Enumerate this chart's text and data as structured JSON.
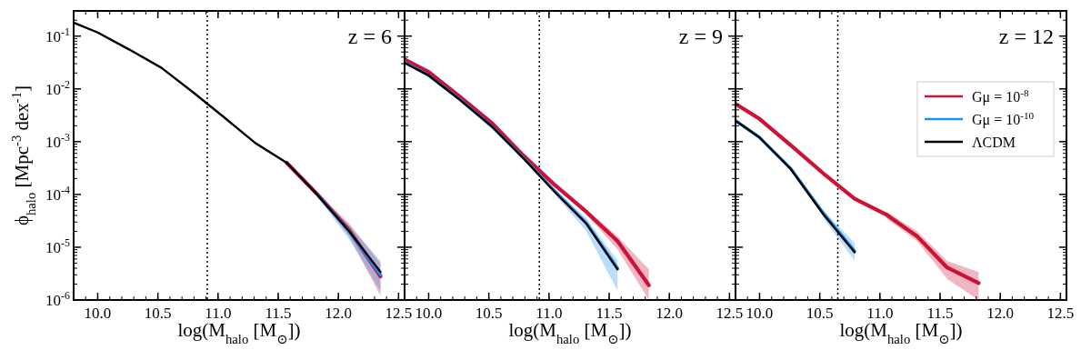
{
  "chart_data": [
    {
      "type": "line",
      "title": "z = 6",
      "xlabel": "log(M$_{halo}$ [M$_{⊙}$])",
      "ylabel": "ϕ$_{halo}$ [Mpc$^{-3}$ dex$^{-1}$]",
      "log": "y",
      "xlim": [
        9.8,
        12.55
      ],
      "xticks": [
        {
          "value": 10,
          "label": "10.0"
        },
        10.5,
        {
          "value": 11,
          "label": "11.0"
        },
        11.5,
        {
          "value": 12,
          "label": "12.0"
        },
        12.5
      ],
      "ylim": [
        1e-06,
        0.3
      ],
      "yticks": [
        {
          "value": 1e-06,
          "label": "10$^{-6}$"
        },
        {
          "value": 1e-05,
          "label": "10$^{-5}$"
        },
        {
          "value": 0.0001,
          "label": "10$^{-4}$"
        },
        {
          "value": 0.001,
          "label": "10$^{-3}$"
        },
        {
          "value": 0.01,
          "label": "10$^{-2}$"
        },
        {
          "value": 0.1,
          "label": "10$^{-1}$"
        }
      ],
      "legend": false,
      "grid": false,
      "ref_lines": [
        {
          "axis": "x",
          "value": 10.91,
          "color": "#000000",
          "line_style": "dotted"
        }
      ],
      "series": [
        {
          "color": "#cc1236",
          "x": [
            11.57,
            11.83,
            12.09,
            12.35
          ],
          "values": [
            0.0004,
            9.8e-05,
            2.1e-05,
            2.8e-06
          ],
          "lower": [
            null,
            9e-05,
            1.6e-05,
            1.2e-06
          ],
          "upper": [
            null,
            0.000105,
            2.8e-05,
            5e-06
          ]
        },
        {
          "color": "#1e8ef0",
          "x": [
            11.83,
            12.09,
            12.35
          ],
          "values": [
            9.6e-05,
            2e-05,
            3e-06
          ],
          "lower": [
            8.8e-05,
            1.4e-05,
            1.5e-06
          ],
          "upper": [
            0.000102,
            2.6e-05,
            5.5e-06
          ]
        },
        {
          "color": "#000000",
          "x": [
            9.8,
            10.0,
            10.26,
            10.53,
            10.79,
            11.05,
            11.31,
            11.57,
            11.83,
            12.09,
            12.35
          ],
          "values": [
            0.18,
            0.117,
            0.056,
            0.025,
            0.0087,
            0.0029,
            0.00094,
            0.0004,
            9.6e-05,
            2e-05,
            3.4e-06
          ]
        }
      ]
    },
    {
      "type": "line",
      "title": "z = 9",
      "xlabel": "log(M$_{halo}$ [M$_{⊙}$])",
      "log": "y",
      "tick_labels": "x",
      "xlim": [
        9.8,
        12.55
      ],
      "xticks": [
        {
          "value": 10,
          "label": "10.0"
        },
        10.5,
        {
          "value": 11,
          "label": "11.0"
        },
        11.5,
        {
          "value": 12,
          "label": "12.0"
        },
        12.5
      ],
      "ylim": [
        1e-06,
        0.3
      ],
      "yticks": [
        {
          "value": 1e-06,
          "label": null
        },
        {
          "value": 1e-05,
          "label": null
        },
        {
          "value": 0.0001,
          "label": null
        },
        {
          "value": 0.001,
          "label": null
        },
        {
          "value": 0.01,
          "label": null
        },
        {
          "value": 0.1,
          "label": null
        }
      ],
      "legend": false,
      "grid": false,
      "ref_lines": [
        {
          "axis": "x",
          "value": 10.92,
          "color": "#000000",
          "line_style": "dotted"
        }
      ],
      "series": [
        {
          "color": "#cc1236",
          "x": [
            9.8,
            10.0,
            10.26,
            10.53,
            10.79,
            11.05,
            11.31,
            11.57,
            11.83
          ],
          "values": [
            0.036,
            0.021,
            0.0071,
            0.0022,
            0.00054,
            0.00015,
            4.7e-05,
            1.3e-05,
            1.9e-06
          ],
          "lower": [
            null,
            null,
            null,
            null,
            null,
            null,
            4.2e-05,
            9e-06,
            1e-06
          ],
          "upper": [
            null,
            null,
            null,
            null,
            null,
            null,
            5.2e-05,
            1.6e-05,
            3.8e-06
          ]
        },
        {
          "color": "#1e8ef0",
          "x": [
            9.8,
            10.0,
            10.26,
            10.53,
            10.79,
            11.05,
            11.31,
            11.57
          ],
          "values": [
            0.032,
            0.018,
            0.0063,
            0.0019,
            0.00049,
            0.000115,
            2.9e-05,
            4e-06
          ],
          "lower": [
            null,
            null,
            null,
            null,
            null,
            0.0001,
            2e-05,
            1.5e-06
          ],
          "upper": [
            null,
            null,
            null,
            null,
            null,
            0.000125,
            3.5e-05,
            5.6e-06
          ]
        },
        {
          "color": "#000000",
          "x": [
            9.8,
            10.0,
            10.26,
            10.53,
            10.79,
            11.05,
            11.31,
            11.57
          ],
          "values": [
            0.031,
            0.018,
            0.0062,
            0.0019,
            0.00048,
            0.00011,
            2.8e-05,
            3.8e-06
          ]
        }
      ]
    },
    {
      "type": "line",
      "title": "z = 12",
      "xlabel": "log(M$_{halo}$ [M$_{⊙}$])",
      "log": "y",
      "tick_labels": "x",
      "xlim": [
        9.8,
        12.55
      ],
      "xticks": [
        {
          "value": 10,
          "label": "10.0"
        },
        10.5,
        {
          "value": 11,
          "label": "11.0"
        },
        11.5,
        {
          "value": 12,
          "label": "12.0"
        },
        12.5
      ],
      "ylim": [
        1e-06,
        0.3
      ],
      "yticks": [
        {
          "value": 1e-06,
          "label": null
        },
        {
          "value": 1e-05,
          "label": null
        },
        {
          "value": 0.0001,
          "label": null
        },
        {
          "value": 0.001,
          "label": null
        },
        {
          "value": 0.01,
          "label": null
        },
        {
          "value": 0.1,
          "label": null
        }
      ],
      "legend": "right",
      "grid": false,
      "ref_lines": [
        {
          "axis": "x",
          "value": 10.65,
          "color": "#000000",
          "line_style": "dotted"
        }
      ],
      "series": [
        {
          "name": "Gμ = 10$^{-8}$",
          "color": "#cc1236",
          "x": [
            9.8,
            10.0,
            10.26,
            10.53,
            10.79,
            11.05,
            11.31,
            11.56,
            11.82
          ],
          "values": [
            0.0052,
            0.0027,
            0.00085,
            0.00025,
            8.3e-05,
            4.2e-05,
            1.6e-05,
            4.1e-06,
            2.1e-06
          ],
          "lower": [
            null,
            null,
            null,
            null,
            null,
            3.6e-05,
            1.3e-05,
            2.5e-06,
            1e-06
          ],
          "upper": [
            null,
            null,
            null,
            null,
            null,
            4.8e-05,
            2e-05,
            5.5e-06,
            3.4e-06
          ]
        },
        {
          "name": "Gμ = 10$^{-10}$",
          "color": "#1e8ef0",
          "x": [
            9.8,
            10.0,
            10.26,
            10.53,
            10.79
          ],
          "values": [
            0.0025,
            0.0012,
            0.00031,
            4.4e-05,
            8.5e-06
          ],
          "lower": [
            null,
            null,
            null,
            3.5e-05,
            5.5e-06
          ],
          "upper": [
            null,
            null,
            null,
            5e-05,
            1.2e-05
          ]
        },
        {
          "name": "ΛCDM",
          "color": "#000000",
          "x": [
            9.8,
            10.0,
            10.26,
            10.53,
            10.79
          ],
          "values": [
            0.0025,
            0.0012,
            0.0003,
            4.2e-05,
            8e-06
          ]
        }
      ]
    }
  ]
}
